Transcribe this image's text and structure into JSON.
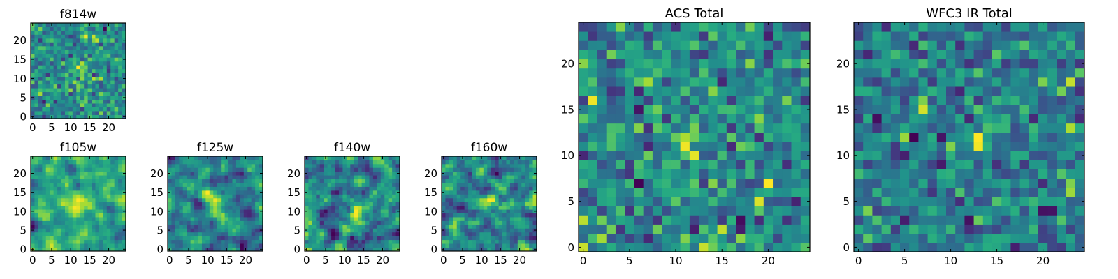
{
  "figure": {
    "description_note": "Grid of 2D cutout images with viridis colormap",
    "colormap": [
      "#440154",
      "#3b528b",
      "#21918c",
      "#5ec962",
      "#fde725"
    ]
  },
  "chart_data": [
    {
      "type": "heatmap",
      "title": "f814w",
      "grid_size": 25,
      "xticks": [
        "0",
        "5",
        "10",
        "15",
        "20"
      ],
      "yticks": [
        "0",
        "5",
        "10",
        "15",
        "20"
      ],
      "xlim": [
        -0.5,
        24.5
      ],
      "ylim": [
        -0.5,
        24.5
      ],
      "peak": [
        12,
        12
      ],
      "noise": "high",
      "seed": 11
    },
    {
      "type": "heatmap",
      "title": "f105w",
      "grid_size": 25,
      "xticks": [
        "0",
        "5",
        "10",
        "15",
        "20"
      ],
      "yticks": [
        "0",
        "5",
        "10",
        "15",
        "20"
      ],
      "xlim": [
        -0.5,
        24.5
      ],
      "ylim": [
        -0.5,
        24.5
      ],
      "peak": [
        12,
        12
      ],
      "noise": "smooth",
      "seed": 23
    },
    {
      "type": "heatmap",
      "title": "f125w",
      "grid_size": 25,
      "xticks": [
        "0",
        "5",
        "10",
        "15",
        "20"
      ],
      "yticks": [
        "0",
        "5",
        "10",
        "15",
        "20"
      ],
      "xlim": [
        -0.5,
        24.5
      ],
      "ylim": [
        -0.5,
        24.5
      ],
      "peak": [
        12,
        12
      ],
      "noise": "smooth",
      "seed": 37
    },
    {
      "type": "heatmap",
      "title": "f140w",
      "grid_size": 25,
      "xticks": [
        "0",
        "5",
        "10",
        "15",
        "20"
      ],
      "yticks": [
        "0",
        "5",
        "10",
        "15",
        "20"
      ],
      "xlim": [
        -0.5,
        24.5
      ],
      "ylim": [
        -0.5,
        24.5
      ],
      "peak": [
        13,
        9
      ],
      "noise": "smooth",
      "seed": 51
    },
    {
      "type": "heatmap",
      "title": "f160w",
      "grid_size": 25,
      "xticks": [
        "0",
        "5",
        "10",
        "15",
        "20"
      ],
      "yticks": [
        "0",
        "5",
        "10",
        "15",
        "20"
      ],
      "xlim": [
        -0.5,
        24.5
      ],
      "ylim": [
        -0.5,
        24.5
      ],
      "peak": [
        12,
        12
      ],
      "noise": "smooth",
      "seed": 67
    },
    {
      "type": "heatmap",
      "title": "ACS Total",
      "grid_size": 25,
      "xticks": [
        "0",
        "5",
        "10",
        "15",
        "20"
      ],
      "yticks": [
        "0",
        "5",
        "10",
        "15",
        "20"
      ],
      "xlim": [
        -0.5,
        24.5
      ],
      "ylim": [
        -0.5,
        24.5
      ],
      "peak": [
        11,
        12
      ],
      "noise": "high",
      "seed": 79
    },
    {
      "type": "heatmap",
      "title": "WFC3 IR Total",
      "grid_size": 25,
      "xticks": [
        "0",
        "5",
        "10",
        "15",
        "20"
      ],
      "yticks": [
        "0",
        "5",
        "10",
        "15",
        "20"
      ],
      "xlim": [
        -0.5,
        24.5
      ],
      "ylim": [
        -0.5,
        24.5
      ],
      "peak": [
        13,
        12
      ],
      "noise": "high",
      "seed": 97
    }
  ]
}
